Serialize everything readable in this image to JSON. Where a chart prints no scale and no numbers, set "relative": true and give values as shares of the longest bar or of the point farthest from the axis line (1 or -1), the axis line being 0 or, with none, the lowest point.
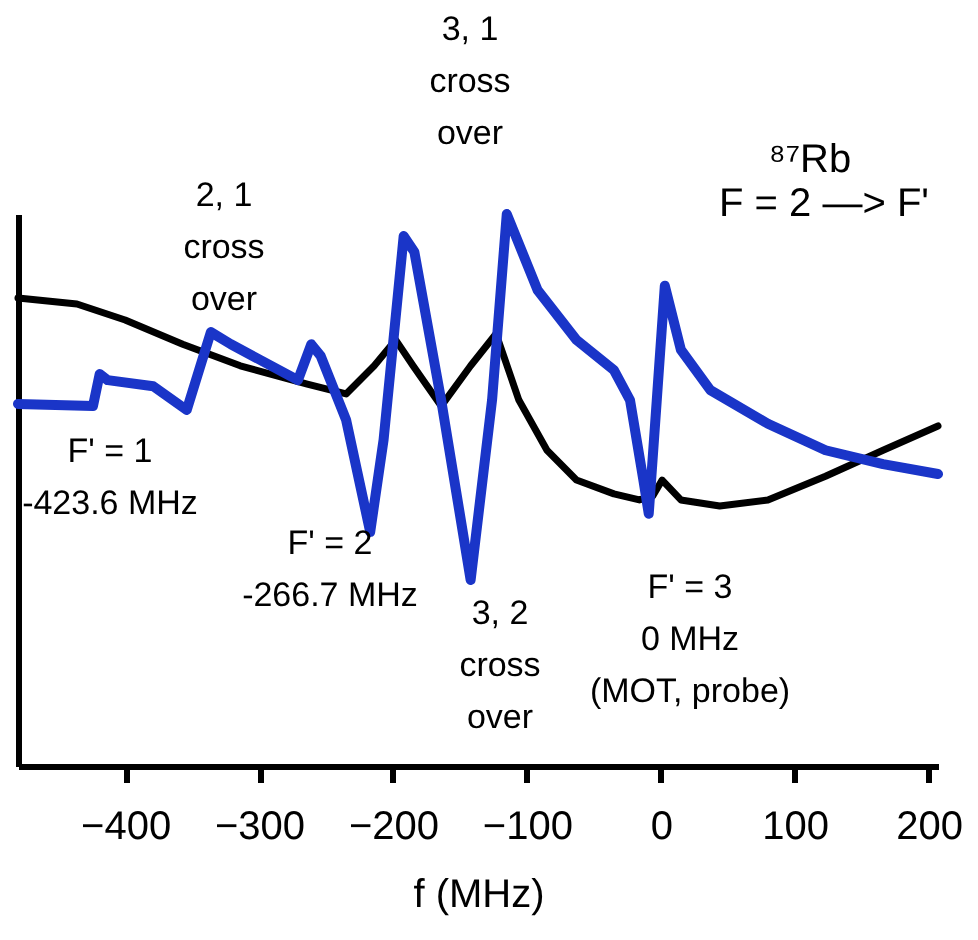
{
  "chart_data": {
    "type": "line",
    "relative": true,
    "xlabel": "f (MHz)",
    "xlim": [
      -480,
      207
    ],
    "xticks": [
      -400,
      -300,
      -200,
      -100,
      0,
      100,
      200
    ],
    "grid": false,
    "legend": false,
    "marker": "none",
    "line_style": "solid",
    "annotations": [
      "⁸⁷Rb",
      "F = 2 —> F'",
      "2, 1\ncross\nover",
      "3, 1\ncross\nover",
      "F' = 1\n-423.6 MHz",
      "F' = 2\n-266.7 MHz",
      "3, 2\ncross\nover",
      "F' = 3\n0 MHz\n(MOT, probe)"
    ],
    "series": [
      {
        "color": "#000000",
        "x": [
          -480,
          -436,
          -400,
          -357,
          -314,
          -264,
          -235,
          -214,
          -198,
          -185,
          -164,
          -142,
          -123,
          -106,
          -85,
          -63,
          -35,
          -16,
          -6,
          1,
          15,
          44,
          80,
          123,
          166,
          207
        ],
        "values": [
          0.848,
          0.837,
          0.808,
          0.764,
          0.725,
          0.692,
          0.674,
          0.725,
          0.772,
          0.725,
          0.652,
          0.725,
          0.783,
          0.663,
          0.572,
          0.518,
          0.493,
          0.482,
          0.489,
          0.518,
          0.482,
          0.471,
          0.482,
          0.525,
          0.572,
          0.616
        ]
      },
      {
        "color": "#1a35c8",
        "x": [
          -480,
          -424,
          -419,
          -413,
          -379,
          -354,
          -336,
          -321,
          -271,
          -261,
          -254,
          -235,
          -217,
          -207,
          -192,
          -184,
          -164,
          -142,
          -126,
          -115,
          -92,
          -63,
          -35,
          -23,
          -13,
          -9,
          -3,
          3,
          15,
          37,
          80,
          123,
          166,
          207
        ],
        "values": [
          0.656,
          0.652,
          0.71,
          0.699,
          0.688,
          0.645,
          0.786,
          0.764,
          0.699,
          0.764,
          0.743,
          0.627,
          0.424,
          0.591,
          0.96,
          0.931,
          0.663,
          0.337,
          0.663,
          1.0,
          0.862,
          0.772,
          0.717,
          0.663,
          0.518,
          0.457,
          0.663,
          0.87,
          0.754,
          0.681,
          0.62,
          0.572,
          0.547,
          0.529
        ]
      }
    ]
  }
}
